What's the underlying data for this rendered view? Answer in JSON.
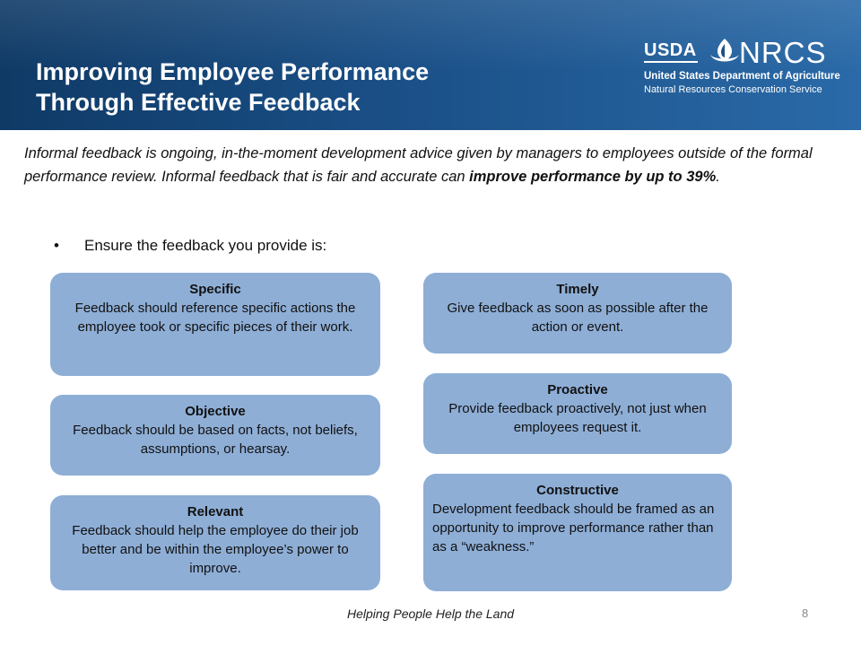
{
  "header": {
    "title_line1": "Improving Employee Performance",
    "title_line2": "Through Effective Feedback",
    "logo": {
      "usda": "USDA",
      "nrcs": "NRCS",
      "department": "United States Department of Agriculture",
      "service": "Natural Resources Conservation Service"
    }
  },
  "intro": {
    "part1": "Informal feedback is ongoing, in-the-moment development advice given by managers to employees outside of the formal performance review.  Informal feedback that is fair and accurate can ",
    "bold": "improve performance by up to 39%",
    "part2": "."
  },
  "bullet": {
    "symbol": "•",
    "text": "Ensure the feedback you provide is:"
  },
  "boxes": [
    {
      "title": "Specific",
      "body": "Feedback should reference specific actions the employee took or specific pieces of their work."
    },
    {
      "title": "Objective",
      "body": "Feedback should be based on facts, not beliefs, assumptions, or hearsay."
    },
    {
      "title": "Relevant",
      "body": "Feedback should help the employee do their  job better and be within the employee’s power to improve."
    },
    {
      "title": "Timely",
      "body": "Give feedback as soon as possible after the action or event."
    },
    {
      "title": "Proactive",
      "body": "Provide feedback proactively, not just when employees request it."
    },
    {
      "title": "Constructive",
      "body": "Development feedback should be framed as an opportunity to improve performance  rather than as a “weakness.”"
    }
  ],
  "footer": {
    "tagline": "Helping People Help the Land",
    "page_number": "8"
  },
  "colors": {
    "header_dark": "#0f3a66",
    "header_light": "#2a6aa8",
    "box_fill": "#8eaed6"
  }
}
